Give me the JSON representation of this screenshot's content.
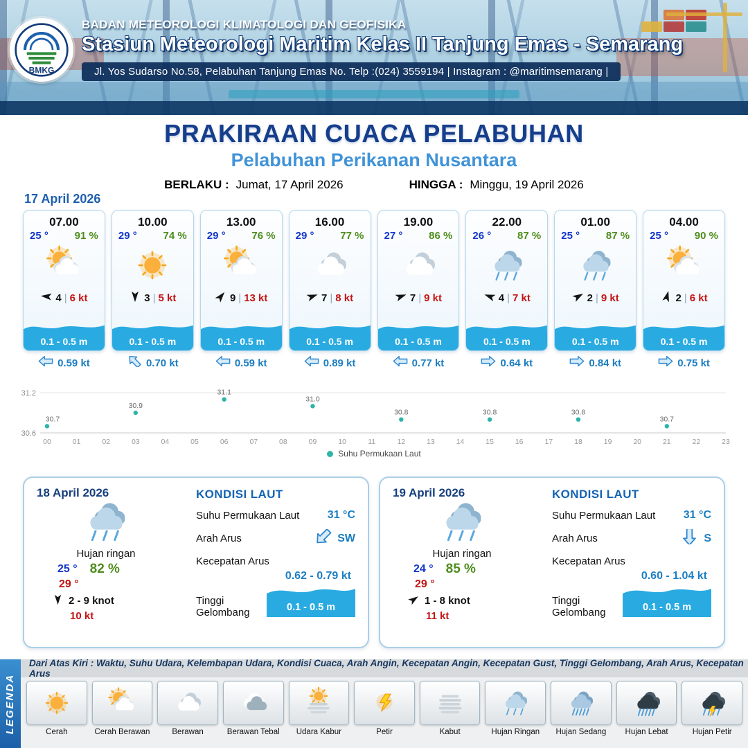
{
  "header": {
    "logo_text": "BMKG",
    "org": "BADAN METEOROLOGI KLIMATOLOGI DAN GEOFISIKA",
    "station": "Stasiun Meteorologi Maritim Kelas II Tanjung Emas - Semarang",
    "address": "Jl. Yos Sudarso No.58, Pelabuhan Tanjung Emas No. Telp :(024) 3559194 | Instagram : @maritimsemarang |"
  },
  "title": {
    "main": "PRAKIRAAN CUACA PELABUHAN",
    "subtitle": "Pelabuhan Perikanan Nusantara",
    "valid_from_label": "BERLAKU :",
    "valid_from": "Jumat, 17 April 2026",
    "valid_to_label": "HINGGA :",
    "valid_to": "Minggu, 19 April 2026"
  },
  "forecast_date": "17 April 2026",
  "hourly": [
    {
      "time": "07.00",
      "temp": "25 °",
      "humidity": "91 %",
      "weather": "cerah-berawan",
      "wind_speed": "4",
      "wind_gust": "6 kt",
      "wind_deg": 185,
      "wave": "0.1 - 0.5 m",
      "current_speed": "0.59 kt",
      "current_deg": 0
    },
    {
      "time": "10.00",
      "temp": "29 °",
      "humidity": "74 %",
      "weather": "cerah",
      "wind_speed": "3",
      "wind_gust": "5 kt",
      "wind_deg": 90,
      "wave": "0.1 - 0.5 m",
      "current_speed": "0.70 kt",
      "current_deg": 45
    },
    {
      "time": "13.00",
      "temp": "29 °",
      "humidity": "76 %",
      "weather": "cerah-berawan",
      "wind_speed": "9",
      "wind_gust": "13 kt",
      "wind_deg": -50,
      "wave": "0.1 - 0.5 m",
      "current_speed": "0.59 kt",
      "current_deg": 0
    },
    {
      "time": "16.00",
      "temp": "29 °",
      "humidity": "77 %",
      "weather": "berawan",
      "wind_speed": "7",
      "wind_gust": "8 kt",
      "wind_deg": -20,
      "wave": "0.1 - 0.5 m",
      "current_speed": "0.89 kt",
      "current_deg": 0
    },
    {
      "time": "19.00",
      "temp": "27 °",
      "humidity": "86 %",
      "weather": "berawan",
      "wind_speed": "7",
      "wind_gust": "9 kt",
      "wind_deg": -20,
      "wave": "0.1 - 0.5 m",
      "current_speed": "0.77 kt",
      "current_deg": 0
    },
    {
      "time": "22.00",
      "temp": "26 °",
      "humidity": "87 %",
      "weather": "hujan-ringan",
      "wind_speed": "4",
      "wind_gust": "7 kt",
      "wind_deg": 200,
      "wave": "0.1 - 0.5 m",
      "current_speed": "0.64 kt",
      "current_deg": 180
    },
    {
      "time": "01.00",
      "temp": "25 °",
      "humidity": "87 %",
      "weather": "hujan-ringan",
      "wind_speed": "2",
      "wind_gust": "9 kt",
      "wind_deg": -30,
      "wave": "0.1 - 0.5 m",
      "current_speed": "0.84 kt",
      "current_deg": 180
    },
    {
      "time": "04.00",
      "temp": "25 °",
      "humidity": "90 %",
      "weather": "cerah-berawan",
      "wind_speed": "2",
      "wind_gust": "6 kt",
      "wind_deg": -75,
      "wave": "0.1 - 0.5 m",
      "current_speed": "0.75 kt",
      "current_deg": 180
    }
  ],
  "chart_data": {
    "type": "scatter",
    "title": "",
    "series_name": "Suhu Permukaan Laut",
    "x_hours": [
      0,
      3,
      6,
      9,
      12,
      15,
      18,
      21
    ],
    "values": [
      30.7,
      30.9,
      31.1,
      31.0,
      30.8,
      30.8,
      30.8,
      30.7
    ],
    "x_ticks": [
      "00",
      "01",
      "02",
      "03",
      "04",
      "05",
      "06",
      "07",
      "08",
      "09",
      "10",
      "11",
      "12",
      "13",
      "14",
      "15",
      "16",
      "17",
      "18",
      "19",
      "20",
      "21",
      "22",
      "23"
    ],
    "y_ticks": [
      "30.6",
      "31.2"
    ],
    "ylim": [
      30.6,
      31.2
    ],
    "point_color": "#2cb5a8",
    "grid": "minimal",
    "legend_position": "bottom"
  },
  "daily": {
    "labels": {
      "sea_title": "KONDISI LAUT",
      "sst": "Suhu Permukaan Laut",
      "current_dir": "Arah Arus",
      "current_speed": "Kecepatan Arus",
      "wave_height": "Tinggi Gelombang"
    },
    "days": [
      {
        "date": "18 April 2026",
        "weather": "hujan-ringan",
        "condition": "Hujan ringan",
        "temp_min": "25 °",
        "humidity": "82 %",
        "temp_max": "29 °",
        "wind_range": "2  - 9 knot",
        "wind_deg": 90,
        "gust": "10 kt",
        "sst": "31 °C",
        "current_dir": "SW",
        "current_dir_deg": -45,
        "current_speed": "0.62  - 0.79 kt",
        "wave": "0.1 - 0.5 m"
      },
      {
        "date": "19 April 2026",
        "weather": "hujan-ringan",
        "condition": "Hujan ringan",
        "temp_min": "24 °",
        "humidity": "85 %",
        "temp_max": "29 °",
        "wind_range": "1  - 8 knot",
        "wind_deg": -35,
        "gust": "11 kt",
        "sst": "31 °C",
        "current_dir": "S",
        "current_dir_deg": -90,
        "current_speed": "0.60  - 1.04 kt",
        "wave": "0.1 - 0.5 m"
      }
    ]
  },
  "legend": {
    "title": "LEGENDA",
    "description": "Dari Atas Kiri : Waktu, Suhu Udara, Kelembapan Udara, Kondisi Cuaca, Arah Angin, Kecepatan Angin, Kecepatan Gust, Tinggi Gelombang, Arah Arus, Kecepatan Arus",
    "items": [
      {
        "label": "Cerah",
        "icon": "cerah"
      },
      {
        "label": "Cerah Berawan",
        "icon": "cerah-berawan"
      },
      {
        "label": "Berawan",
        "icon": "berawan"
      },
      {
        "label": "Berawan Tebal",
        "icon": "berawan-tebal"
      },
      {
        "label": "Udara Kabur",
        "icon": "udara-kabur"
      },
      {
        "label": "Petir",
        "icon": "petir"
      },
      {
        "label": "Kabut",
        "icon": "kabut"
      },
      {
        "label": "Hujan Ringan",
        "icon": "hujan-ringan"
      },
      {
        "label": "Hujan Sedang",
        "icon": "hujan-sedang"
      },
      {
        "label": "Hujan Lebat",
        "icon": "hujan-lebat"
      },
      {
        "label": "Hujan Petir",
        "icon": "hujan-petir"
      }
    ]
  }
}
